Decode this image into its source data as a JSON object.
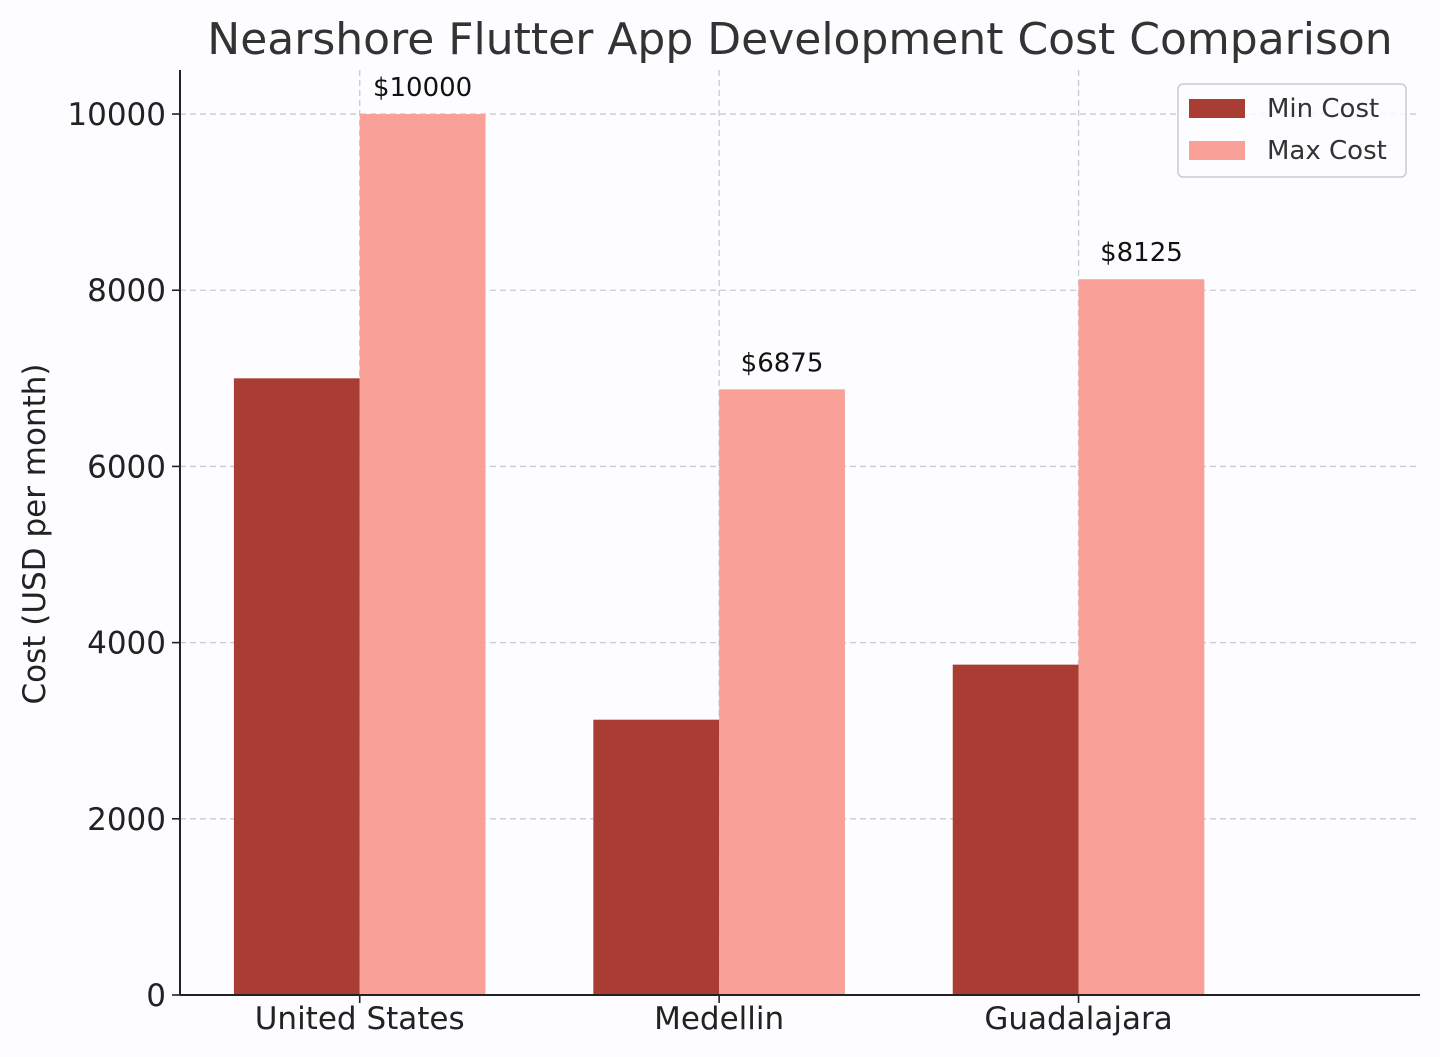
{
  "chart_data": {
    "type": "bar",
    "title": "Nearshore Flutter App Development Cost Comparison",
    "xlabel": "",
    "ylabel": "Cost (USD per month)",
    "categories": [
      "United States",
      "Medellin",
      "Guadalajara"
    ],
    "series": [
      {
        "name": "Min Cost",
        "values": [
          7000,
          3125,
          3750
        ],
        "color": "#a93c33"
      },
      {
        "name": "Max Cost",
        "values": [
          10000,
          6875,
          8125
        ],
        "color": "#f9a199"
      }
    ],
    "data_labels": [
      {
        "series": 1,
        "category": 0,
        "text": "$10000"
      },
      {
        "series": 1,
        "category": 1,
        "text": "$6875"
      },
      {
        "series": 1,
        "category": 2,
        "text": "$8125"
      }
    ],
    "ylim": [
      0,
      10500
    ],
    "yticks": [
      0,
      2000,
      4000,
      6000,
      8000,
      10000
    ],
    "grid": true,
    "legend_position": "top-right"
  }
}
